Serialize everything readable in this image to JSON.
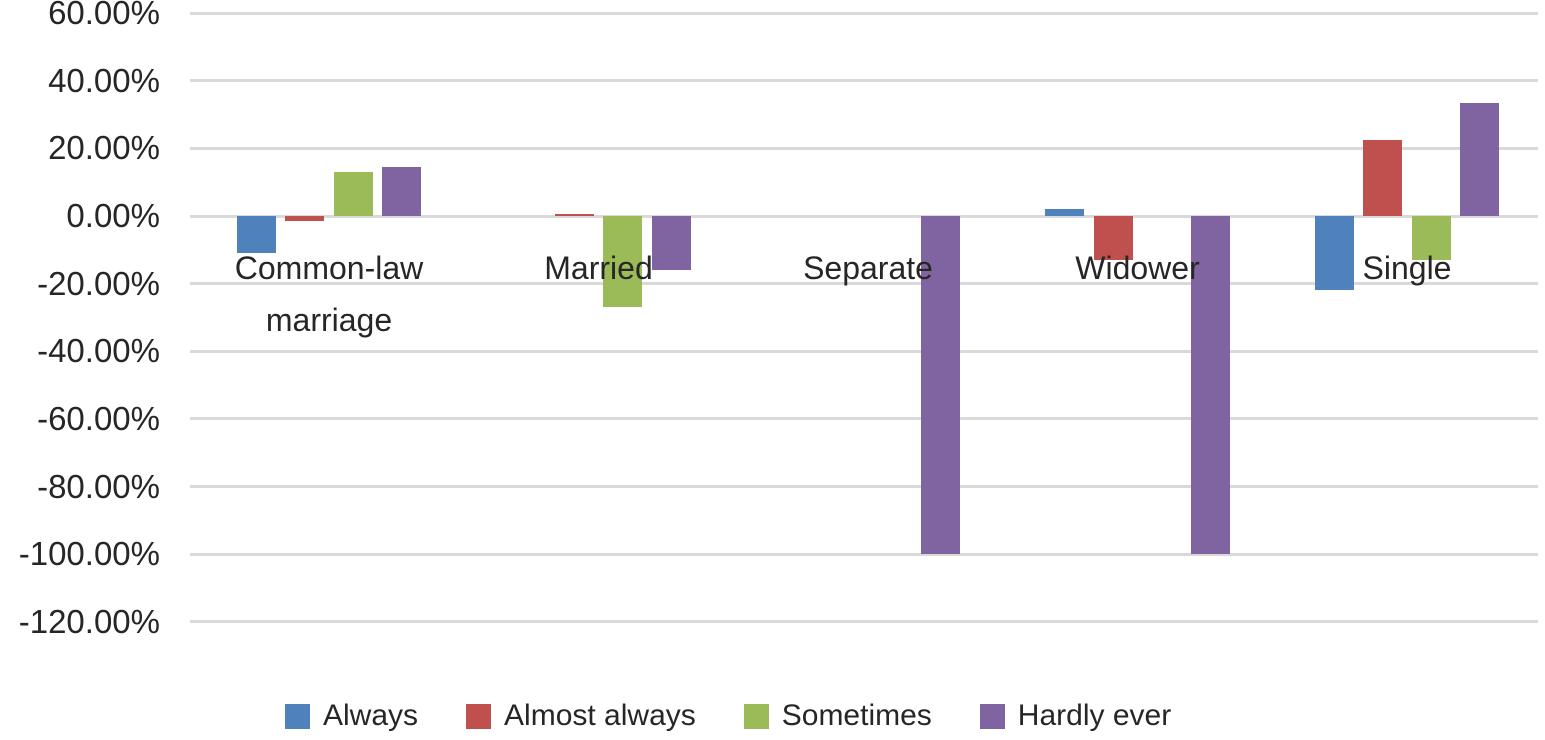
{
  "chart_data": {
    "type": "bar",
    "title": "",
    "xlabel": "",
    "ylabel": "",
    "categories": [
      "Common-law marriage",
      "Married",
      "Separate",
      "Widower",
      "Single"
    ],
    "series": [
      {
        "name": "Always",
        "color": "#4F81BD",
        "values": [
          -11,
          0,
          0,
          2,
          -22
        ]
      },
      {
        "name": "Almost always",
        "color": "#C0504D",
        "values": [
          -1.5,
          0.5,
          0,
          -13,
          22.5
        ]
      },
      {
        "name": "Sometimes",
        "color": "#9BBB59",
        "values": [
          13,
          -27,
          0,
          0,
          -13
        ]
      },
      {
        "name": "Hardly ever",
        "color": "#8064A2",
        "values": [
          14.5,
          -16,
          -100,
          -100,
          33.5
        ]
      }
    ],
    "y_axis": {
      "min": -120,
      "max": 60,
      "step": 20,
      "unit": "percent",
      "tick_labels": [
        "60.00%",
        "40.00%",
        "20.00%",
        "0.00%",
        "-20.00%",
        "-40.00%",
        "-60.00%",
        "-80.00%",
        "-100.00%",
        "-120.00%"
      ],
      "tick_values": [
        60,
        40,
        20,
        0,
        -20,
        -40,
        -60,
        -80,
        -100,
        -120
      ]
    },
    "legend_position": "bottom",
    "grid": true,
    "gridline_color": "#D9D9D9",
    "text_color": "#262626",
    "background_color": "#FFFFFF"
  }
}
